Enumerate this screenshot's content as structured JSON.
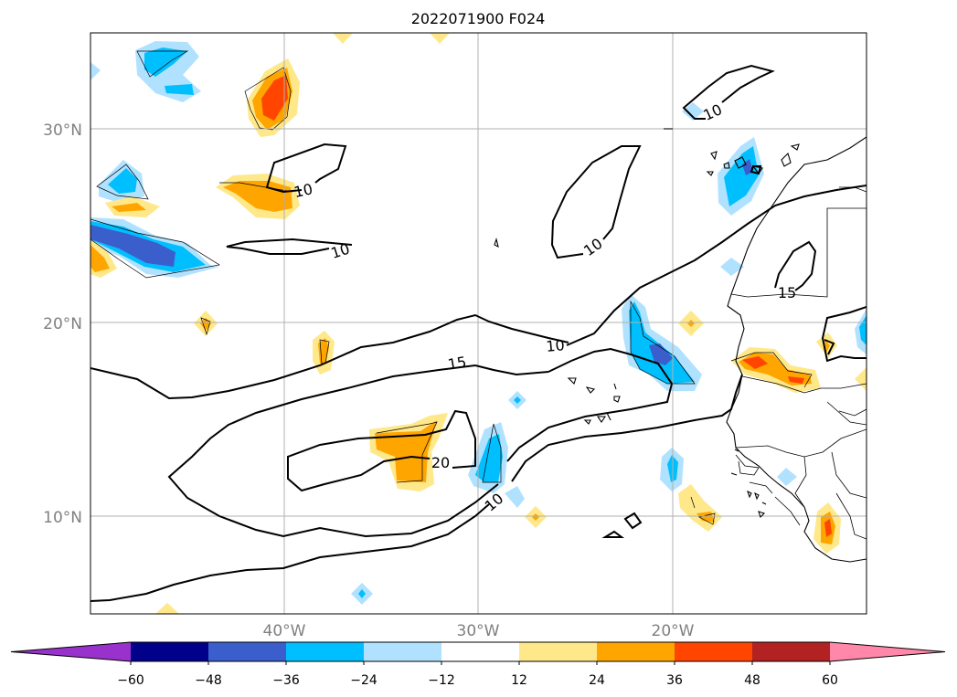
{
  "title": "2022071900 F024",
  "lat_labels": [
    "30°N",
    "20°N",
    "10°N"
  ],
  "lon_labels": [
    "40°W",
    "30°W",
    "20°W"
  ],
  "contour_labels": [
    "10",
    "10",
    "10",
    "10",
    "15",
    "10",
    "15",
    "20",
    "10"
  ],
  "colorbar": {
    "ticks": [
      "−60",
      "−48",
      "−36",
      "−24",
      "−12",
      "12",
      "24",
      "36",
      "48",
      "60"
    ],
    "colors": [
      "#9932cc",
      "#00008b",
      "#3a5fcd",
      "#00bfff",
      "#b0e2ff",
      "#ffffff",
      "#ffe88a",
      "#ffa500",
      "#ff4500",
      "#b22222",
      "#ff88aa"
    ]
  }
}
